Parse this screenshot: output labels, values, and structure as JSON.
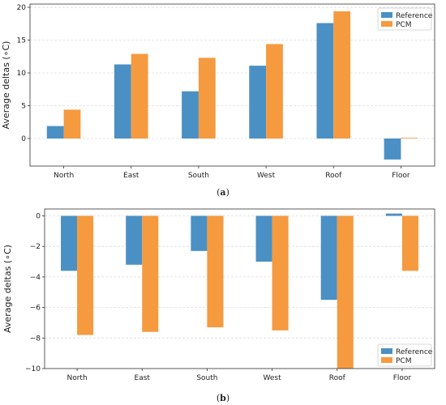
{
  "colors": {
    "reference": "#4a90c4",
    "pcm": "#f59a3f",
    "grid": "#dddddd",
    "axis": "#333333"
  },
  "chart_data": [
    {
      "type": "bar",
      "caption_prefix": "(",
      "caption_letter": "a",
      "caption_suffix": ")",
      "ylabel": "Average deltas (∘C)",
      "categories": [
        "North",
        "East",
        "South",
        "West",
        "Roof",
        "Floor"
      ],
      "series": [
        {
          "name": "Reference",
          "values": [
            1.9,
            11.3,
            7.2,
            11.1,
            17.6,
            -3.2
          ]
        },
        {
          "name": "PCM",
          "values": [
            4.4,
            12.9,
            12.3,
            14.4,
            19.4,
            0.1
          ]
        }
      ],
      "yticks": [
        0,
        5,
        10,
        15,
        20
      ],
      "ylim": [
        -4.2,
        20.5
      ],
      "grid": "horizontal-dashed",
      "legend": "top-right"
    },
    {
      "type": "bar",
      "caption_prefix": "(",
      "caption_letter": "b",
      "caption_suffix": ")",
      "ylabel": "Average deltas (∘C)",
      "categories": [
        "North",
        "East",
        "South",
        "West",
        "Roof",
        "Floor"
      ],
      "series": [
        {
          "name": "Reference",
          "values": [
            -3.6,
            -3.2,
            -2.3,
            -3.0,
            -5.5,
            0.15
          ]
        },
        {
          "name": "PCM",
          "values": [
            -7.8,
            -7.6,
            -7.3,
            -7.5,
            -10.0,
            -3.6
          ]
        }
      ],
      "yticks": [
        0,
        -2,
        -4,
        -6,
        -8,
        -10
      ],
      "ylim": [
        -10.0,
        0.45
      ],
      "grid": "horizontal-dashed",
      "legend": "bottom-right"
    }
  ]
}
